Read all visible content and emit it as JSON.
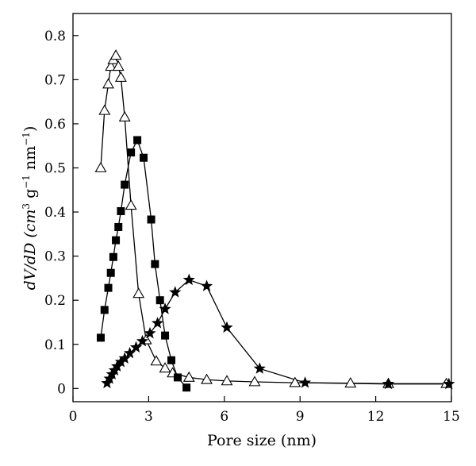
{
  "chart_data": {
    "type": "line",
    "xlabel": "Pore size (nm)",
    "ylabel_parts": [
      "dV/dD (cm",
      "3",
      " g",
      "−1",
      " nm",
      "−1",
      ")"
    ],
    "xlim": [
      0,
      15
    ],
    "ylim": [
      -0.03,
      0.85
    ],
    "xticks": [
      0,
      3,
      6,
      9,
      12,
      15
    ],
    "yticks": [
      0,
      0.1,
      0.2,
      0.3,
      0.4,
      0.5,
      0.6,
      0.7,
      0.8
    ],
    "grid": false,
    "series": [
      {
        "marker": "open-triangle",
        "x": [
          1.1,
          1.25,
          1.4,
          1.5,
          1.6,
          1.7,
          1.8,
          1.9,
          2.05,
          2.3,
          2.6,
          2.9,
          3.3,
          3.65,
          3.95,
          4.6,
          5.3,
          6.1,
          7.2,
          8.8,
          11.0,
          12.5,
          14.8
        ],
        "y": [
          0.5,
          0.63,
          0.69,
          0.73,
          0.745,
          0.755,
          0.73,
          0.705,
          0.615,
          0.415,
          0.215,
          0.11,
          0.062,
          0.046,
          0.035,
          0.025,
          0.02,
          0.017,
          0.015,
          0.013,
          0.012,
          0.011,
          0.011
        ]
      },
      {
        "marker": "filled-square",
        "x": [
          1.1,
          1.25,
          1.4,
          1.5,
          1.6,
          1.7,
          1.8,
          1.9,
          2.05,
          2.3,
          2.55,
          2.8,
          3.1,
          3.25,
          3.45,
          3.65,
          3.9,
          4.15,
          4.5
        ],
        "y": [
          0.115,
          0.178,
          0.228,
          0.262,
          0.298,
          0.336,
          0.366,
          0.402,
          0.462,
          0.535,
          0.563,
          0.523,
          0.383,
          0.282,
          0.2,
          0.12,
          0.064,
          0.025,
          0.002
        ]
      },
      {
        "marker": "filled-star",
        "x": [
          1.35,
          1.45,
          1.55,
          1.65,
          1.75,
          1.9,
          2.05,
          2.25,
          2.5,
          2.75,
          3.05,
          3.35,
          3.65,
          4.05,
          4.6,
          5.3,
          6.1,
          7.4,
          9.2,
          12.5,
          14.9
        ],
        "y": [
          0.012,
          0.022,
          0.032,
          0.041,
          0.05,
          0.06,
          0.068,
          0.08,
          0.093,
          0.107,
          0.125,
          0.148,
          0.18,
          0.218,
          0.246,
          0.232,
          0.138,
          0.045,
          0.013,
          0.01,
          0.01
        ]
      }
    ]
  }
}
